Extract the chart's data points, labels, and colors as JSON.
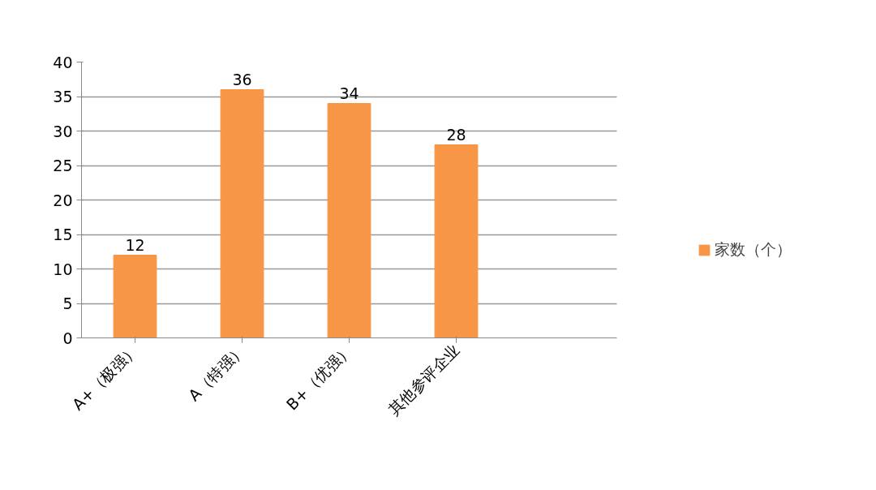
{
  "chart_data": {
    "type": "bar",
    "categories": [
      "A+（极强）",
      "A（特强）",
      "B+（优强）",
      "其他参评企业",
      null
    ],
    "series": [
      {
        "name": "家数（个）",
        "color": "#f79646",
        "values": [
          12,
          36,
          34,
          28,
          null
        ]
      }
    ],
    "ylim": [
      0,
      40
    ],
    "yticks": [
      0,
      5,
      10,
      15,
      20,
      25,
      30,
      35,
      40
    ],
    "grid": "y",
    "legend": "right",
    "data_labels": true
  }
}
